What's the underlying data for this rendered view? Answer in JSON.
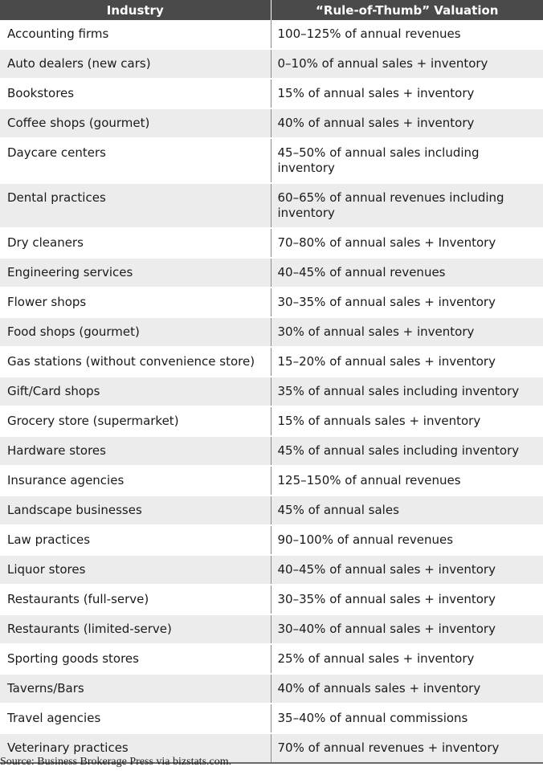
{
  "header": {
    "col_industry": "Industry",
    "col_valuation": "“Rule-of-Thumb” Valuation"
  },
  "rows": [
    {
      "industry": "Accounting firms",
      "valuation": "100–125% of annual revenues"
    },
    {
      "industry": "Auto dealers (new cars)",
      "valuation": "0–10% of annual sales + inventory"
    },
    {
      "industry": "Bookstores",
      "valuation": "15% of annual sales + inventory"
    },
    {
      "industry": "Coffee shops (gourmet)",
      "valuation": "40% of annual sales + inventory"
    },
    {
      "industry": "Daycare centers",
      "valuation": "45–50% of annual sales including inventory"
    },
    {
      "industry": "Dental practices",
      "valuation": "60–65% of annual revenues including inventory"
    },
    {
      "industry": "Dry cleaners",
      "valuation": "70–80% of annual sales + Inventory"
    },
    {
      "industry": "Engineering services",
      "valuation": "40–45% of annual revenues"
    },
    {
      "industry": "Flower shops",
      "valuation": "30–35% of annual sales + inventory"
    },
    {
      "industry": "Food shops (gourmet)",
      "valuation": "30% of annual sales + inventory"
    },
    {
      "industry": "Gas stations (without convenience store)",
      "valuation": "15–20% of annual sales + inventory"
    },
    {
      "industry": "Gift/Card shops",
      "valuation": "35% of annual sales including inventory"
    },
    {
      "industry": "Grocery store (supermarket)",
      "valuation": "15% of annuals sales + inventory"
    },
    {
      "industry": "Hardware stores",
      "valuation": "45% of annual sales including inventory"
    },
    {
      "industry": "Insurance agencies",
      "valuation": "125–150% of annual revenues"
    },
    {
      "industry": "Landscape businesses",
      "valuation": "45% of annual sales"
    },
    {
      "industry": "Law practices",
      "valuation": "90–100% of annual revenues"
    },
    {
      "industry": "Liquor stores",
      "valuation": "40–45% of annual sales + inventory"
    },
    {
      "industry": "Restaurants (full-serve)",
      "valuation": "30–35% of annual sales + inventory"
    },
    {
      "industry": "Restaurants (limited-serve)",
      "valuation": "30–40% of annual sales + inventory"
    },
    {
      "industry": "Sporting goods stores",
      "valuation": "25% of annual sales + inventory"
    },
    {
      "industry": "Taverns/Bars",
      "valuation": "40% of annuals sales + inventory"
    },
    {
      "industry": "Travel agencies",
      "valuation": "35–40% of annual commissions"
    },
    {
      "industry": "Veterinary practices",
      "valuation": "70% of annual revenues + inventory"
    }
  ],
  "source": "Source: Business Brokerage Press via bizstats.com."
}
